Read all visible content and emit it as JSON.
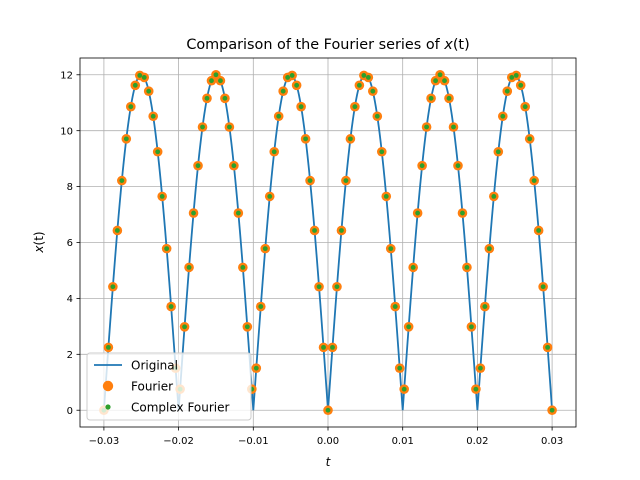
{
  "chart_data": {
    "type": "line",
    "title_main": "Comparison of the Fourier series of ",
    "title_var": "x",
    "title_arg": "(t)",
    "xlabel": "t",
    "ylabel_var": "x",
    "ylabel_arg": "(t)",
    "xlim": [
      -0.0332,
      0.0332
    ],
    "ylim": [
      -0.6,
      12.6
    ],
    "xticks": [
      -0.03,
      -0.02,
      -0.01,
      0.0,
      0.01,
      0.02,
      0.03
    ],
    "xtick_labels": [
      "−0.03",
      "−0.02",
      "−0.01",
      "0.00",
      "0.01",
      "0.02",
      "0.03"
    ],
    "yticks": [
      0,
      2,
      4,
      6,
      8,
      10,
      12
    ],
    "ytick_labels": [
      "0",
      "2",
      "4",
      "6",
      "8",
      "10",
      "12"
    ],
    "grid": true,
    "legend_position": "lower-left",
    "signal": {
      "amplitude": 12,
      "period": 0.01,
      "t_range": [
        -0.03,
        0.03
      ]
    },
    "series": [
      {
        "name": "Original",
        "style": "line",
        "color": "#1f77b4"
      },
      {
        "name": "Fourier",
        "style": "marker-large",
        "color": "#ff7f0e"
      },
      {
        "name": "Complex Fourier",
        "style": "marker-small",
        "color": "#2ca02c"
      }
    ],
    "sample_step": 0.0006,
    "sample_count": 101
  }
}
